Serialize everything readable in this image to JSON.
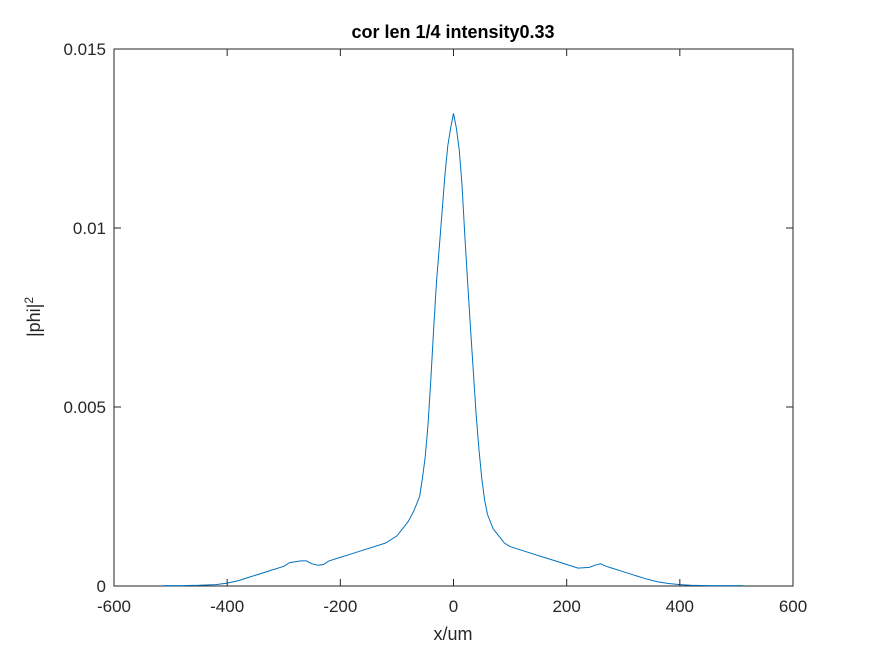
{
  "chart_data": {
    "type": "line",
    "title": "cor len 1/4 intensity0.33",
    "xlabel": "x/um",
    "ylabel": {
      "base": "|phi|",
      "sup": "2"
    },
    "xlim": [
      -600,
      600
    ],
    "ylim": [
      0,
      0.015
    ],
    "xticks": [
      -600,
      -400,
      -200,
      0,
      200,
      400,
      600
    ],
    "yticks": [
      0,
      0.005,
      0.01,
      0.015
    ],
    "xtick_labels": [
      "-600",
      "-400",
      "-200",
      "0",
      "200",
      "400",
      "600"
    ],
    "ytick_labels": [
      "0",
      "0.005",
      "0.01",
      "0.015"
    ],
    "grid": false,
    "line_color": "#0072BD",
    "axis_color": "#262626",
    "series": [
      {
        "x": [
          -512,
          -480,
          -450,
          -420,
          -400,
          -380,
          -360,
          -340,
          -320,
          -300,
          -290,
          -280,
          -270,
          -260,
          -250,
          -240,
          -230,
          -220,
          -200,
          -180,
          -160,
          -140,
          -120,
          -100,
          -90,
          -80,
          -70,
          -60,
          -55,
          -50,
          -45,
          -40,
          -35,
          -30,
          -25,
          -20,
          -15,
          -10,
          -5,
          0,
          5,
          10,
          15,
          20,
          25,
          30,
          35,
          40,
          45,
          50,
          55,
          60,
          70,
          80,
          90,
          100,
          120,
          140,
          160,
          180,
          200,
          220,
          240,
          250,
          260,
          270,
          280,
          300,
          320,
          340,
          360,
          380,
          400,
          420,
          450,
          480,
          512
        ],
        "y": [
          1e-05,
          1e-05,
          2e-05,
          4e-05,
          8e-05,
          0.00015,
          0.00025,
          0.00035,
          0.00045,
          0.00055,
          0.00065,
          0.00068,
          0.0007,
          0.0007,
          0.00062,
          0.00058,
          0.0006,
          0.0007,
          0.0008,
          0.0009,
          0.001,
          0.0011,
          0.0012,
          0.0014,
          0.0016,
          0.0018,
          0.0021,
          0.0025,
          0.003,
          0.0036,
          0.0045,
          0.0058,
          0.0072,
          0.0085,
          0.0095,
          0.0105,
          0.0115,
          0.0123,
          0.0128,
          0.0132,
          0.0128,
          0.0122,
          0.0112,
          0.0098,
          0.0085,
          0.0072,
          0.006,
          0.0048,
          0.0038,
          0.003,
          0.0024,
          0.002,
          0.0016,
          0.0014,
          0.0012,
          0.0011,
          0.001,
          0.0009,
          0.0008,
          0.0007,
          0.0006,
          0.0005,
          0.00052,
          0.00058,
          0.00062,
          0.00055,
          0.0005,
          0.0004,
          0.0003,
          0.0002,
          0.00012,
          7e-05,
          4e-05,
          2e-05,
          1e-05,
          1e-05,
          1e-05
        ]
      }
    ]
  }
}
